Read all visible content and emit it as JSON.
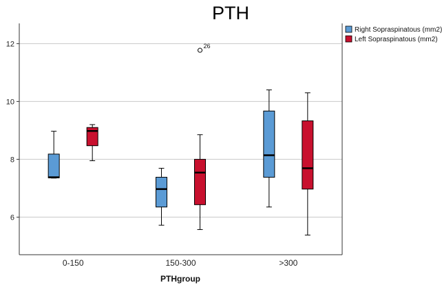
{
  "chart_data": {
    "type": "boxplot",
    "title": "PTH",
    "xlabel": "PTHgroup",
    "ylabel": "",
    "ylim": [
      4.7,
      12.7
    ],
    "yticks": [
      6,
      8,
      10,
      12
    ],
    "grid": "horizontal",
    "legend_position": "top-right",
    "categories": [
      "0-150",
      "150-300",
      ">300"
    ],
    "series": [
      {
        "name": "Right Sopraspinatous (mm2)",
        "color": "#5b9bd5",
        "boxes": [
          {
            "min": 7.35,
            "q1": 7.36,
            "median": 7.38,
            "q3": 8.18,
            "max": 8.97
          },
          {
            "min": 5.72,
            "q1": 6.35,
            "median": 6.97,
            "q3": 7.38,
            "max": 7.69
          },
          {
            "min": 6.35,
            "q1": 7.38,
            "median": 8.14,
            "q3": 9.67,
            "max": 10.4
          }
        ]
      },
      {
        "name": "Left Sopraspinatous (mm2)",
        "color": "#c8102e",
        "boxes": [
          {
            "min": 7.95,
            "q1": 8.47,
            "median": 8.98,
            "q3": 9.1,
            "max": 9.2
          },
          {
            "min": 5.57,
            "q1": 6.43,
            "median": 7.54,
            "q3": 8.0,
            "max": 8.85
          },
          {
            "min": 5.38,
            "q1": 6.97,
            "median": 7.69,
            "q3": 9.33,
            "max": 10.3
          }
        ]
      }
    ],
    "outliers": [
      {
        "category": "150-300",
        "series": 1,
        "value": 11.77,
        "label": "26"
      }
    ]
  }
}
